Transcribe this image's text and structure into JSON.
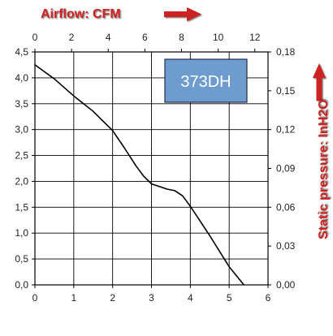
{
  "chart_data": {
    "type": "line",
    "title": "Airflow: CFM",
    "right_axis_label": "Static pressure: InH2O",
    "badge": "373DH",
    "x_bottom": {
      "ticks": [
        0,
        1,
        2,
        3,
        4,
        5,
        6
      ],
      "lim": [
        0,
        6
      ]
    },
    "x_top": {
      "ticks": [
        0,
        2,
        4,
        6,
        8,
        10,
        12
      ],
      "lim": [
        0,
        12.72
      ]
    },
    "y_left": {
      "ticks": [
        "0,0",
        "0,5",
        "1,0",
        "1,5",
        "2,0",
        "2,5",
        "3,0",
        "3,5",
        "4,0",
        "4,5"
      ],
      "lim": [
        0,
        4.5
      ]
    },
    "y_right": {
      "ticks": [
        "0,00",
        "0,03",
        "0,06",
        "0,09",
        "0,12",
        "0,15",
        "0,18"
      ],
      "lim": [
        0,
        0.18
      ]
    },
    "grid": true,
    "series": [
      {
        "x": [
          0,
          0.5,
          1,
          1.5,
          2,
          2.3,
          2.6,
          2.8,
          3,
          3.2,
          3.4,
          3.6,
          3.8,
          4,
          4.5,
          5,
          5.38
        ],
        "y": [
          4.25,
          3.98,
          3.65,
          3.35,
          2.98,
          2.65,
          2.3,
          2.1,
          1.95,
          1.9,
          1.85,
          1.82,
          1.72,
          1.52,
          0.95,
          0.35,
          0
        ],
        "color": "#000000"
      }
    ],
    "colors": {
      "accent_red": "#cc2020",
      "badge_fill": "#6e9ccf",
      "grid": "#000000"
    }
  }
}
